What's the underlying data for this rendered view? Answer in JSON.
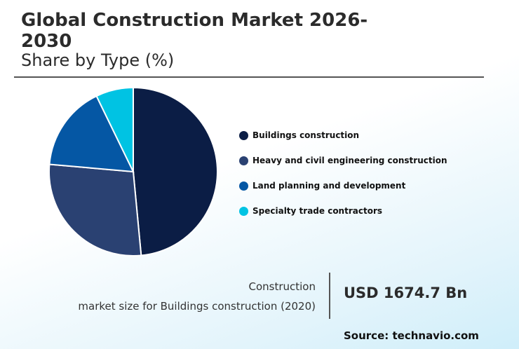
{
  "header": {
    "title": "Global Construction Market 2026-2030",
    "subtitle": "Share by Type (%)"
  },
  "chart_data": {
    "type": "pie",
    "title": "Global Construction Market 2026-2030",
    "subtitle": "Share by Type (%)",
    "categories": [
      "Buildings construction",
      "Heavy and civil engineering construction",
      "Land planning and development",
      "Specialty trade contractors"
    ],
    "values": [
      48.5,
      27.9,
      16.4,
      7.2
    ],
    "colors": [
      "#0b1d45",
      "#2a4172",
      "#0557a4",
      "#00c3e3"
    ],
    "legend_position": "right"
  },
  "footer": {
    "label_line1": "Construction",
    "label_line2": "market size for Buildings construction (2020)",
    "value": "USD 1674.7 Bn",
    "source": "Source: technavio.com"
  }
}
